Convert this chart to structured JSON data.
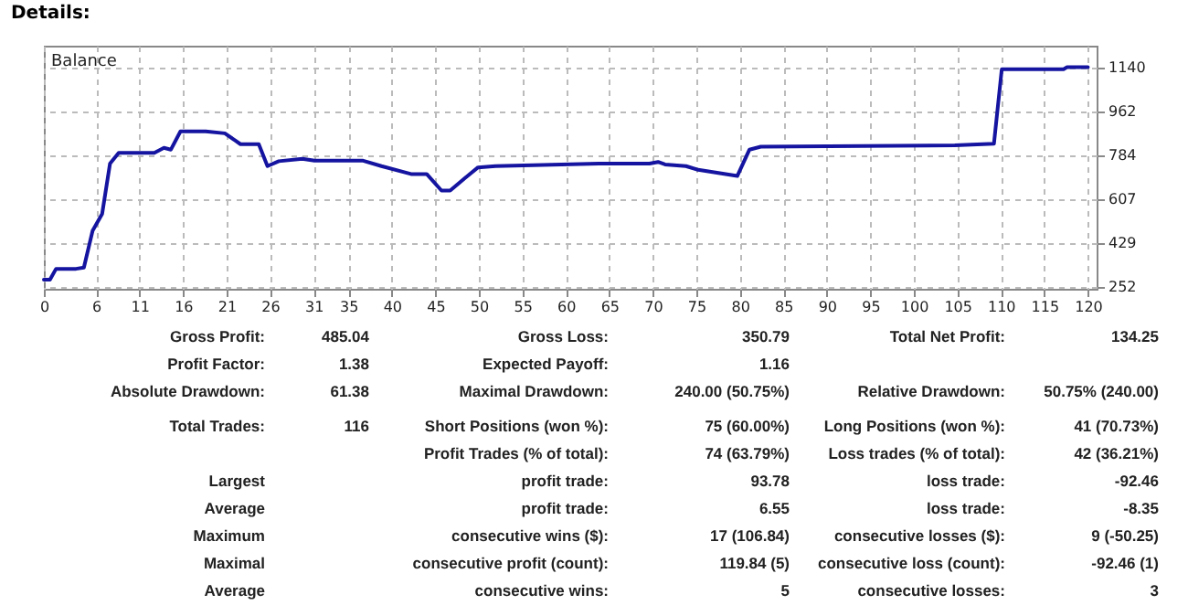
{
  "chart_data": {
    "type": "line",
    "title": "Details:",
    "x": [
      0,
      0.7,
      1.4,
      3.7,
      4.6,
      5.6,
      6.7,
      7.6,
      8.6,
      12.7,
      13.8,
      14.6,
      15.7,
      18.6,
      20.8,
      22.6,
      24.7,
      25.7,
      27,
      29.7,
      31.1,
      36.7,
      38.8,
      42.2,
      44,
      45.7,
      46.7,
      48.1,
      49.9,
      51.9,
      63.8,
      69.6,
      70.6,
      71.4,
      73.8,
      75.2,
      79.7,
      81.1,
      82.4,
      104.7,
      109.2,
      110.1,
      117.2,
      117.6,
      120
    ],
    "series": [
      {
        "name": "Balance",
        "color": "#1414a0",
        "values": [
          282,
          282,
          326,
          326,
          331,
          480,
          549,
          752,
          796,
          796,
          816,
          809,
          883,
          883,
          875,
          831,
          831,
          742,
          762,
          772,
          764,
          764,
          742,
          710,
          710,
          643,
          643,
          685,
          737,
          742,
          752,
          752,
          759,
          749,
          742,
          727,
          702,
          809,
          821,
          826,
          833,
          1135,
          1135,
          1143,
          1143
        ]
      }
    ],
    "xlim": [
      0,
      121
    ],
    "xticks": [
      0,
      6,
      11,
      16,
      21,
      26,
      31,
      35,
      40,
      45,
      50,
      55,
      60,
      65,
      70,
      75,
      80,
      85,
      90,
      95,
      100,
      105,
      110,
      115,
      120
    ],
    "ylim": [
      245,
      1230
    ],
    "yticks": [
      252,
      429,
      607,
      784,
      962,
      1140
    ],
    "grid": true,
    "legend": "top left",
    "marker": "none",
    "line_style": "solid",
    "annotations": [
      "Gross Profit:",
      "485.04",
      "Gross Loss:",
      "350.79",
      "Total Net Profit:",
      "134.25",
      "Profit Factor:",
      "1.38",
      "Expected Payoff:",
      "1.16",
      "Absolute Drawdown:",
      "61.38",
      "Maximal Drawdown:",
      "240.00 (50.75%)",
      "Relative Drawdown:",
      "50.75% (240.00)",
      "Total Trades:",
      "116",
      "Short Positions (won %):",
      "75 (60.00%)",
      "Long Positions (won %):",
      "41 (70.73%)",
      "Profit Trades (% of total):",
      "74 (63.79%)",
      "Loss trades (% of total):",
      "42 (36.21%)",
      "Largest",
      "profit trade:",
      "93.78",
      "loss trade:",
      "-92.46",
      "Average",
      "profit trade:",
      "6.55",
      "loss trade:",
      "-8.35",
      "Maximum",
      "consecutive wins ($):",
      "17 (106.84)",
      "consecutive losses ($):",
      "9 (-50.25)",
      "Maximal",
      "consecutive profit (count):",
      "119.84 (5)",
      "consecutive loss (count):",
      "-92.46 (1)",
      "Average",
      "consecutive wins:",
      "5",
      "consecutive losses:",
      "3"
    ]
  }
}
